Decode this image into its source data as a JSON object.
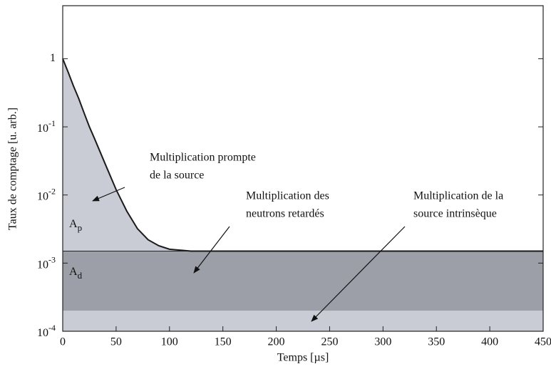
{
  "chart_data": {
    "type": "line",
    "xlabel": "Temps [µs]",
    "ylabel": "Taux de comptage [u. arb.]",
    "x": [
      0,
      5,
      10,
      15,
      20,
      25,
      30,
      40,
      50,
      60,
      70,
      80,
      90,
      100,
      120,
      150,
      200,
      250,
      300,
      350,
      400,
      450
    ],
    "series": [
      {
        "color": "#1a1a1a",
        "values": [
          1.0,
          0.64,
          0.4,
          0.26,
          0.16,
          0.1,
          0.066,
          0.028,
          0.012,
          0.0058,
          0.0032,
          0.0022,
          0.0018,
          0.0016,
          0.0015,
          0.0015,
          0.0015,
          0.0015,
          0.0015,
          0.0015,
          0.0015,
          0.0015
        ]
      }
    ],
    "log_y": true,
    "xlim": [
      0,
      450
    ],
    "xticks": [
      0,
      50,
      100,
      150,
      200,
      250,
      300,
      350,
      400,
      450
    ],
    "ylim": [
      0.0001,
      6
    ],
    "yticks": [
      {
        "value": 0.0001,
        "label": "10^-4"
      },
      {
        "value": 0.001,
        "label": "10^-3"
      },
      {
        "value": 0.01,
        "label": "10^-2"
      },
      {
        "value": 0.1,
        "label": "10^-1"
      },
      1
    ],
    "delayed_level": 0.0015,
    "intrinsic_level": 0.0002,
    "prompt_color": "#c9ccd4",
    "delayed_color": "#9c9fa7",
    "intrinsic_color": "#c9ccd4",
    "region_labels": [
      {
        "text": "A",
        "sub": "p"
      },
      {
        "text": "A",
        "sub": "d"
      }
    ],
    "annotations": [
      {
        "lines": [
          "Multiplication prompte",
          "de la source"
        ]
      },
      {
        "lines": [
          "Multiplication des",
          "neutrons retardés"
        ]
      },
      {
        "lines": [
          "Multiplication de la",
          "source intrinsèque"
        ]
      }
    ]
  }
}
